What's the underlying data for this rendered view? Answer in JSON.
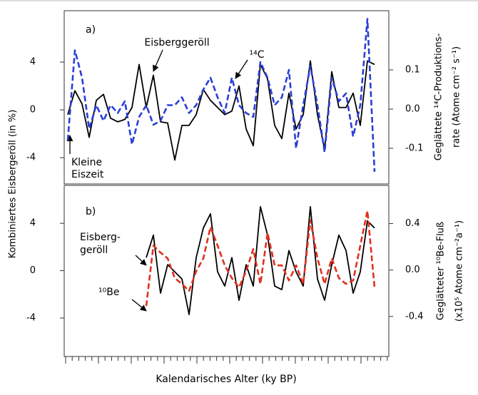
{
  "ylabel": "Kombiniertes Eisbergeröll (in %)",
  "xlabel": "Kalendarisches Alter (ky BP)",
  "chart_data": [
    {
      "type": "line",
      "ylabel": [
        "Geglättete ¹⁴C-Produktions-",
        "rate (Atome cm⁻² s⁻¹)"
      ],
      "annotations": [
        "a)",
        "Eisberggeröll",
        "¹⁴C",
        "Kleine",
        "Eiszeit"
      ],
      "categories": [
        null,
        null,
        null,
        null,
        null,
        null,
        null,
        null,
        null,
        null,
        null,
        null,
        null,
        null,
        null,
        null,
        null,
        null,
        null,
        null,
        null,
        null,
        null,
        null,
        null,
        null,
        null,
        null,
        null,
        null,
        null,
        null,
        null,
        null,
        null,
        null,
        null,
        null,
        null,
        null,
        null,
        null,
        null,
        null
      ],
      "ylim": [
        -6.2,
        8.3
      ],
      "yticks": [
        -4,
        0,
        4
      ],
      "y2lim": [
        -0.191,
        0.251
      ],
      "y2ticks": [
        -0.1,
        {
          "value": 0,
          "label": "0.0"
        },
        0.1
      ],
      "series": [
        {
          "name": "Eisberggeröll",
          "color": "#000000",
          "dashed": false,
          "values": [
            -0.4,
            1.6,
            0.5,
            -2.3,
            0.8,
            1.3,
            -0.7,
            -1.0,
            -0.8,
            0.2,
            3.8,
            0.2,
            2.9,
            -1.0,
            -1.1,
            -4.2,
            -1.3,
            -1.3,
            -0.4,
            1.7,
            0.8,
            0.2,
            -0.4,
            -0.1,
            2.0,
            -1.6,
            -3.0,
            3.8,
            2.6,
            -1.3,
            -2.4,
            1.4,
            -1.6,
            -0.4,
            4.1,
            -0.4,
            -3.3,
            3.2,
            0.2,
            0.2,
            1.4,
            -1.3,
            4.1,
            3.8
          ]
        },
        {
          "name": "¹⁴C",
          "color": "#2a3fd6",
          "dashed": true,
          "axis": "y2",
          "values": [
            -0.08,
            0.15,
            0.08,
            -0.05,
            0.01,
            -0.03,
            0.01,
            -0.01,
            0.02,
            -0.09,
            -0.02,
            0.01,
            -0.04,
            -0.03,
            0.01,
            0.01,
            0.03,
            -0.01,
            0.01,
            0.05,
            0.08,
            0.03,
            -0.01,
            0.08,
            0.01,
            -0.01,
            -0.02,
            0.12,
            0.08,
            0.01,
            0.03,
            0.1,
            -0.1,
            0.01,
            0.11,
            0.01,
            -0.11,
            0.08,
            0.02,
            0.04,
            -0.07,
            0.01,
            0.23,
            -0.16
          ]
        }
      ]
    },
    {
      "type": "line",
      "ylabel": [
        "Geglätteter ¹⁰Be-Fluß",
        "(x10⁵ Atome cm⁻²a⁻¹)"
      ],
      "annotations": [
        "b)",
        "Eisberg-",
        "geröll",
        "¹⁰Be"
      ],
      "categories": [
        null,
        null,
        null,
        null,
        null,
        null,
        null,
        null,
        null,
        null,
        null,
        null,
        null,
        null,
        null,
        null,
        null,
        null,
        null,
        null,
        null,
        null,
        null,
        null,
        null,
        null,
        null,
        null,
        null,
        null,
        null,
        null,
        null,
        null,
        null,
        null,
        null,
        null,
        null,
        null,
        null,
        null,
        null,
        null
      ],
      "ylim": [
        -7.25,
        7.2
      ],
      "yticks": [
        -4,
        0,
        4
      ],
      "y2lim": [
        -0.745,
        0.729
      ],
      "y2ticks": [
        -0.4,
        {
          "value": 0,
          "label": "0.0"
        },
        0.4
      ],
      "series": [
        {
          "name": "Eisberggeröll",
          "color": "#000000",
          "dashed": false,
          "values": [
            null,
            null,
            null,
            null,
            null,
            null,
            null,
            null,
            null,
            null,
            null,
            1.1,
            3.0,
            -1.9,
            0.5,
            -0.1,
            -0.7,
            -3.7,
            1.1,
            3.6,
            4.8,
            -0.1,
            -1.3,
            1.1,
            -2.5,
            0.5,
            -1.3,
            5.4,
            3.0,
            -1.3,
            -1.6,
            1.7,
            -0.1,
            -1.3,
            5.4,
            -0.7,
            -2.5,
            0.5,
            3.0,
            1.7,
            -1.9,
            -0.1,
            4.2,
            3.6
          ]
        },
        {
          "name": "¹⁰Be",
          "color": "#e0301e",
          "dashed": true,
          "axis": "y2",
          "values": [
            null,
            null,
            null,
            null,
            null,
            null,
            null,
            null,
            null,
            null,
            null,
            -0.31,
            0.21,
            0.15,
            0.1,
            -0.07,
            -0.12,
            -0.18,
            -0.01,
            0.1,
            0.37,
            0.21,
            0.04,
            -0.07,
            -0.15,
            -0.01,
            0.18,
            -0.12,
            0.32,
            0.04,
            0.04,
            -0.09,
            0.04,
            -0.12,
            0.43,
            0.1,
            -0.12,
            0.1,
            -0.07,
            -0.12,
            -0.09,
            0.21,
            0.51,
            -0.15
          ]
        }
      ]
    }
  ]
}
